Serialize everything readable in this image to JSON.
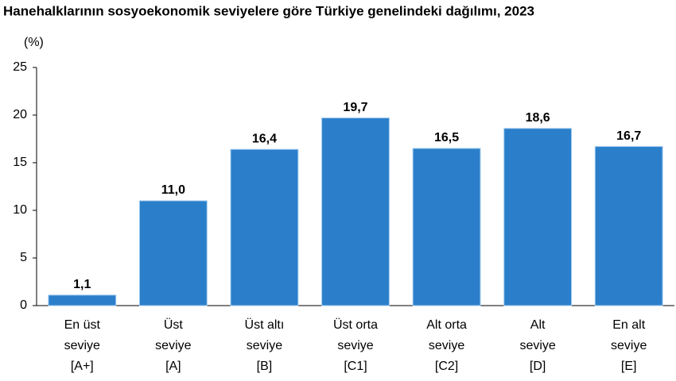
{
  "chart_data": {
    "type": "bar",
    "title": "Hanehalklarının sosyoekonomik seviyelere göre Türkiye genelindeki dağılımı, 2023",
    "ylabel": "(%)",
    "categories": [
      [
        "En üst",
        "seviye",
        "[A+]"
      ],
      [
        "Üst",
        "seviye",
        "[A]"
      ],
      [
        "Üst altı",
        "seviye",
        "[B]"
      ],
      [
        "Üst orta",
        "seviye",
        "[C1]"
      ],
      [
        "Alt orta",
        "seviye",
        "[C2]"
      ],
      [
        "Alt",
        "seviye",
        "[D]"
      ],
      [
        "En alt",
        "seviye",
        "[E]"
      ]
    ],
    "values": [
      1.1,
      11.0,
      16.4,
      19.7,
      16.5,
      18.6,
      16.7
    ],
    "value_labels": [
      "1,1",
      "11,0",
      "16,4",
      "19,7",
      "16,5",
      "18,6",
      "16,7"
    ],
    "color": "#2b7fca",
    "ylim": [
      0,
      25
    ],
    "yticks": [
      0,
      5,
      10,
      15,
      20,
      25
    ],
    "grid": false
  }
}
